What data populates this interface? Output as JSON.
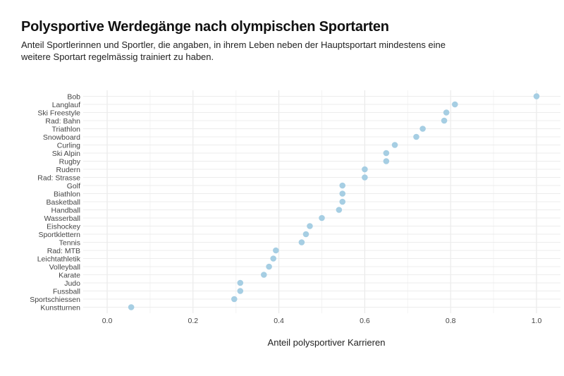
{
  "chart_data": {
    "type": "scatter",
    "title": "Polysportive Werdegänge nach olympischen Sportarten",
    "subtitle": "Anteil Sportlerinnen und Sportler, die angaben, in ihrem Leben neben der Hauptsportart mindestens eine weitere Sportart regelmässig trainiert zu haben.",
    "xlabel": "Anteil polysportiver Karrieren",
    "ylabel": "",
    "xlim": [
      -0.06,
      1.05
    ],
    "xticks": [
      "0.0",
      "0.2",
      "0.4",
      "0.6",
      "0.8",
      "1.0"
    ],
    "grid": true,
    "point_color": "#a6cee3",
    "categories": [
      "Bob",
      "Langlauf",
      "Ski Freestyle",
      "Rad: Bahn",
      "Triathlon",
      "Snowboard",
      "Curling",
      "Ski Alpin",
      "Rugby",
      "Rudern",
      "Rad: Strasse",
      "Golf",
      "Biathlon",
      "Basketball",
      "Handball",
      "Wasserball",
      "Eishockey",
      "Sportklettern",
      "Tennis",
      "Rad: MTB",
      "Leichtathletik",
      "Volleyball",
      "Karate",
      "Judo",
      "Fussball",
      "Sportschiessen",
      "Kunstturnen"
    ],
    "values": [
      1.0,
      0.81,
      0.79,
      0.785,
      0.735,
      0.72,
      0.67,
      0.65,
      0.65,
      0.6,
      0.6,
      0.548,
      0.548,
      0.548,
      0.54,
      0.5,
      0.472,
      0.463,
      0.453,
      0.393,
      0.387,
      0.377,
      0.365,
      0.31,
      0.31,
      0.296,
      0.056
    ]
  }
}
